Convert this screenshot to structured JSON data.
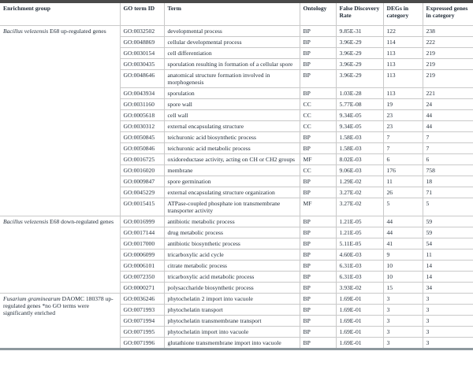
{
  "colors": {
    "text": "#1f2a36",
    "row_line": "#c9c9c9",
    "top_border": "#4a4a4a",
    "bottom_border": "#8e999f"
  },
  "table": {
    "columns": [
      "Enrichment group",
      "GO term ID",
      "Term",
      "Ontology",
      "False Discovery Rate",
      "DEGs in category",
      "Expressed genes in category"
    ],
    "groups": [
      {
        "label_italic": "Bacillus velezensis",
        "label_rest": " E68 up-regulated genes",
        "rows": [
          {
            "go_id": "GO:0032502",
            "term": "developmental process",
            "ontology": "BP",
            "fdr": "9.85E-31",
            "degs": "122",
            "expressed": "238"
          },
          {
            "go_id": "GO:0048869",
            "term": "cellular developmental process",
            "ontology": "BP",
            "fdr": "3.96E-29",
            "degs": "114",
            "expressed": "222"
          },
          {
            "go_id": "GO:0030154",
            "term": "cell differentiation",
            "ontology": "BP",
            "fdr": "3.96E-29",
            "degs": "113",
            "expressed": "219"
          },
          {
            "go_id": "GO:0030435",
            "term": "sporulation resulting in formation of a cellular spore",
            "ontology": "BP",
            "fdr": "3.96E-29",
            "degs": "113",
            "expressed": "219"
          },
          {
            "go_id": "GO:0048646",
            "term": "anatomical structure formation involved in morphogenesis",
            "ontology": "BP",
            "fdr": "3.96E-29",
            "degs": "113",
            "expressed": "219"
          },
          {
            "go_id": "GO:0043934",
            "term": "sporulation",
            "ontology": "BP",
            "fdr": "1.03E-28",
            "degs": "113",
            "expressed": "221"
          },
          {
            "go_id": "GO:0031160",
            "term": "spore wall",
            "ontology": "CC",
            "fdr": "5.77E-08",
            "degs": "19",
            "expressed": "24"
          },
          {
            "go_id": "GO:0005618",
            "term": "cell wall",
            "ontology": "CC",
            "fdr": "9.34E-05",
            "degs": "23",
            "expressed": "44"
          },
          {
            "go_id": "GO:0030312",
            "term": "external encapsulating structure",
            "ontology": "CC",
            "fdr": "9.34E-05",
            "degs": "23",
            "expressed": "44"
          },
          {
            "go_id": "GO:0050845",
            "term": "teichuronic acid biosynthetic process",
            "ontology": "BP",
            "fdr": "1.58E-03",
            "degs": "7",
            "expressed": "7"
          },
          {
            "go_id": "GO:0050846",
            "term": "teichuronic acid metabolic process",
            "ontology": "BP",
            "fdr": "1.58E-03",
            "degs": "7",
            "expressed": "7"
          },
          {
            "go_id": "GO:0016725",
            "term": "oxidoreductase activity, acting on CH or CH2 groups",
            "ontology": "MF",
            "fdr": "8.02E-03",
            "degs": "6",
            "expressed": "6"
          },
          {
            "go_id": "GO:0016020",
            "term": "membrane",
            "ontology": "CC",
            "fdr": "9.06E-03",
            "degs": "176",
            "expressed": "758"
          },
          {
            "go_id": "GO:0009847",
            "term": "spore germination",
            "ontology": "BP",
            "fdr": "1.29E-02",
            "degs": "11",
            "expressed": "18"
          },
          {
            "go_id": "GO:0045229",
            "term": "external encapsulating structure organization",
            "ontology": "BP",
            "fdr": "3.27E-02",
            "degs": "26",
            "expressed": "71"
          },
          {
            "go_id": "GO:0015415",
            "term": "ATPase-coupled phosphate ion transmembrane transporter activity",
            "ontology": "MF",
            "fdr": "3.27E-02",
            "degs": "5",
            "expressed": "5"
          }
        ]
      },
      {
        "label_italic": "Bacillus velezensis",
        "label_rest": " E68 down-regulated genes",
        "rows": [
          {
            "go_id": "GO:0016999",
            "term": "antibiotic metabolic process",
            "ontology": "BP",
            "fdr": "1.21E-05",
            "degs": "44",
            "expressed": "59"
          },
          {
            "go_id": "GO:0017144",
            "term": "drug metabolic process",
            "ontology": "BP",
            "fdr": "1.21E-05",
            "degs": "44",
            "expressed": "59"
          },
          {
            "go_id": "GO:0017000",
            "term": "antibiotic biosynthetic process",
            "ontology": "BP",
            "fdr": "5.11E-05",
            "degs": "41",
            "expressed": "54"
          },
          {
            "go_id": "GO:0006099",
            "term": "tricarboxylic acid cycle",
            "ontology": "BP",
            "fdr": "4.60E-03",
            "degs": "9",
            "expressed": "11"
          },
          {
            "go_id": "GO:0006101",
            "term": "citrate metabolic process",
            "ontology": "BP",
            "fdr": "6.31E-03",
            "degs": "10",
            "expressed": "14"
          },
          {
            "go_id": "GO:0072350",
            "term": "tricarboxylic acid metabolic process",
            "ontology": "BP",
            "fdr": "6.31E-03",
            "degs": "10",
            "expressed": "14"
          },
          {
            "go_id": "GO:0000271",
            "term": "polysaccharide biosynthetic process",
            "ontology": "BP",
            "fdr": "3.93E-02",
            "degs": "15",
            "expressed": "34"
          }
        ]
      },
      {
        "label_italic": "Fusarium graminearum",
        "label_rest": " DAOMC 180378 up-regulated genes *no GO terms were significantly enriched",
        "rows": [
          {
            "go_id": "GO:0036246",
            "term": "phytochelatin 2 import into vacuole",
            "ontology": "BP",
            "fdr": "1.69E-01",
            "degs": "3",
            "expressed": "3"
          },
          {
            "go_id": "GO:0071993",
            "term": "phytochelatin transport",
            "ontology": "BP",
            "fdr": "1.69E-01",
            "degs": "3",
            "expressed": "3"
          },
          {
            "go_id": "GO:0071994",
            "term": "phytochelatin transmembrane transport",
            "ontology": "BP",
            "fdr": "1.69E-01",
            "degs": "3",
            "expressed": "3"
          },
          {
            "go_id": "GO:0071995",
            "term": "phytochelatin import into vacuole",
            "ontology": "BP",
            "fdr": "1.69E-01",
            "degs": "3",
            "expressed": "3"
          },
          {
            "go_id": "GO:0071996",
            "term": "glutathione transmembrane import into vacuole",
            "ontology": "BP",
            "fdr": "1.69E-01",
            "degs": "3",
            "expressed": "3"
          }
        ]
      }
    ]
  }
}
